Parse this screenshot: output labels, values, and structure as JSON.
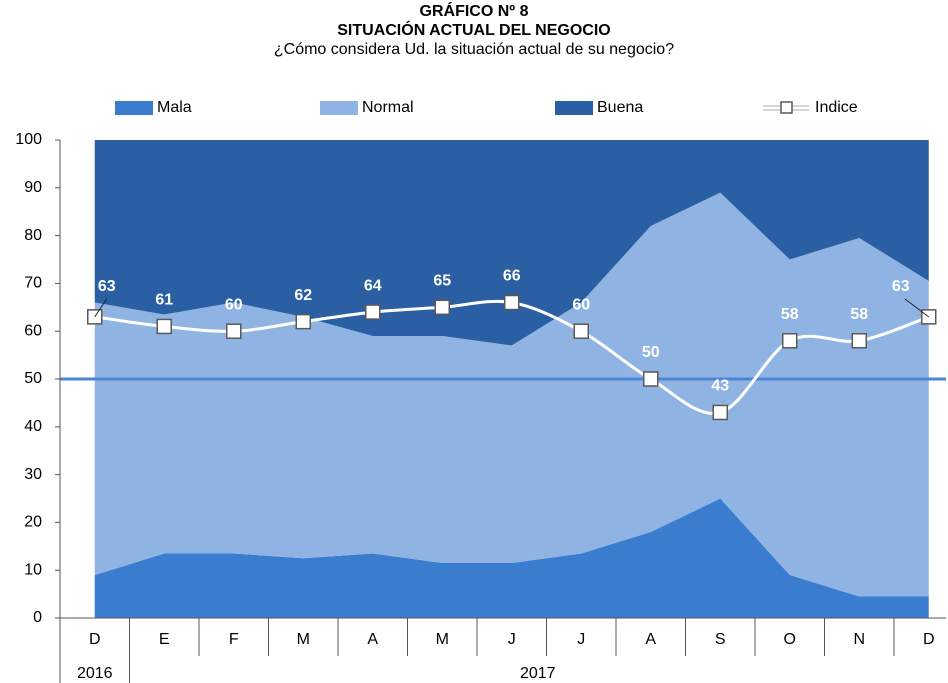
{
  "chart_data": {
    "type": "stacked-area-line",
    "title": "GRÁFICO Nº 8",
    "subtitle": "SITUACIÓN ACTUAL DEL NEGOCIO",
    "caption": "¿Cómo considera Ud. la situación actual de su negocio?",
    "categories": [
      "D",
      "E",
      "F",
      "M",
      "A",
      "M",
      "J",
      "J",
      "A",
      "S",
      "O",
      "N",
      "D"
    ],
    "years": [
      "2016",
      "2017",
      null,
      null,
      null,
      null,
      null,
      null,
      null,
      null,
      null,
      null,
      null
    ],
    "series": [
      {
        "name": "Mala",
        "color": "#3a7dcf",
        "type": "area",
        "values": [
          9,
          13.5,
          13.5,
          12.5,
          13.5,
          11.5,
          11.5,
          13.5,
          18,
          25,
          9,
          4.5,
          4.5
        ]
      },
      {
        "name": "Normal",
        "color": "#8fb4e3",
        "type": "area",
        "values": [
          57,
          50,
          52.5,
          50.5,
          45.5,
          47.5,
          45.5,
          52.5,
          64,
          64,
          66,
          75,
          66
        ]
      },
      {
        "name": "Buena",
        "color": "#2a5fa4",
        "type": "area",
        "values": [
          34,
          36.5,
          34,
          37,
          41,
          41,
          43,
          34,
          18,
          11,
          25,
          20.5,
          29.5
        ]
      },
      {
        "name": "Indice",
        "color": "#ffffff",
        "type": "line",
        "values": [
          63,
          61,
          60,
          62,
          64,
          65,
          66,
          60,
          50,
          43,
          58,
          58,
          63
        ]
      }
    ],
    "hline": 50,
    "hline_color": "#4a86d4",
    "ylim": [
      0,
      100
    ],
    "yticks": [
      0,
      10,
      20,
      30,
      40,
      50,
      60,
      70,
      80,
      90,
      100
    ]
  }
}
